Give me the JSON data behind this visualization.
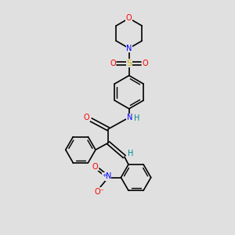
{
  "bg_color": "#e0e0e0",
  "atom_colors": {
    "O": "#ff0000",
    "N": "#0000ff",
    "S": "#ccaa00",
    "C": "#000000",
    "H": "#008888"
  },
  "bond_color": "#000000",
  "line_width": 1.2,
  "figsize": [
    3.0,
    3.0
  ],
  "dpi": 100
}
